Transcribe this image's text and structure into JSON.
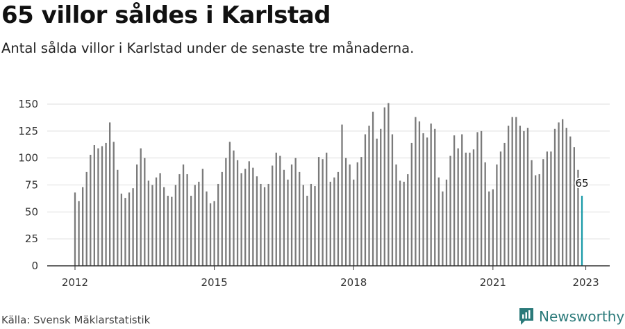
{
  "title": "65 villor såldes i Karlstad",
  "subtitle": "Antal sålda villor i Karlstad under de senaste tre månaderna.",
  "source": "Källa: Svensk Mäklarstatistik",
  "brand": {
    "name": "Newsworthy",
    "icon": "newsworthy-logo-icon",
    "color": "#2b7a7a"
  },
  "colors": {
    "bar": "#7a7a7a",
    "highlight": "#1a9aa8",
    "grid": "#dddddd",
    "axis": "#333333"
  },
  "chart_data": {
    "type": "bar",
    "x_start": "2012-01",
    "x_tick_labels": [
      "2012",
      "2015",
      "2018",
      "2021",
      "2023"
    ],
    "y_ticks": [
      0,
      25,
      50,
      75,
      100,
      125,
      150
    ],
    "ylim": [
      0,
      150
    ],
    "highlight_label": "65",
    "values": [
      68,
      60,
      73,
      87,
      103,
      112,
      109,
      111,
      114,
      133,
      115,
      89,
      67,
      63,
      68,
      72,
      94,
      109,
      100,
      79,
      75,
      82,
      86,
      73,
      65,
      64,
      75,
      85,
      94,
      85,
      65,
      75,
      78,
      90,
      69,
      58,
      60,
      76,
      87,
      100,
      115,
      107,
      98,
      86,
      90,
      97,
      91,
      83,
      76,
      73,
      76,
      93,
      105,
      102,
      89,
      80,
      94,
      100,
      87,
      75,
      65,
      76,
      74,
      101,
      99,
      105,
      78,
      82,
      87,
      131,
      100,
      94,
      80,
      96,
      101,
      122,
      130,
      143,
      118,
      127,
      147,
      151,
      122,
      94,
      79,
      78,
      85,
      114,
      138,
      134,
      123,
      119,
      132,
      127,
      82,
      69,
      80,
      102,
      121,
      109,
      122,
      105,
      105,
      108,
      124,
      125,
      96,
      69,
      71,
      94,
      106,
      114,
      130,
      138,
      138,
      130,
      125,
      128,
      98,
      84,
      85,
      99,
      106,
      106,
      127,
      133,
      136,
      128,
      120,
      110,
      89,
      65
    ]
  }
}
